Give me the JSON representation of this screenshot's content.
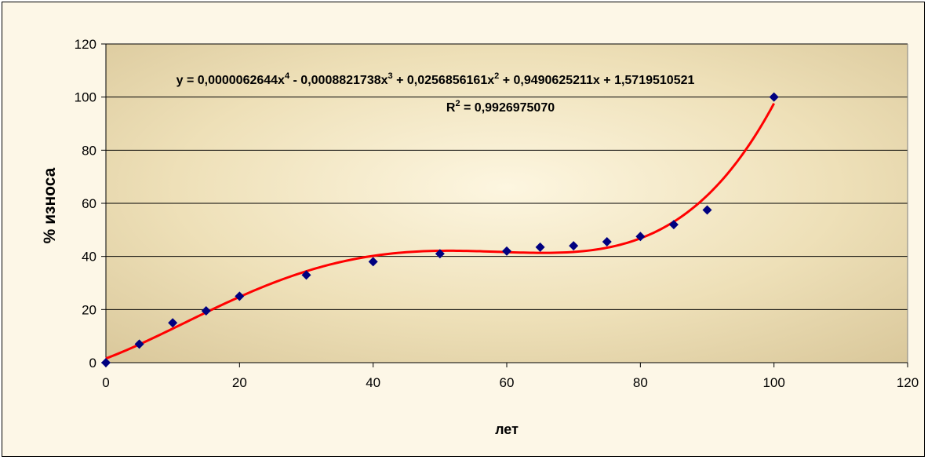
{
  "chart_data": {
    "type": "scatter",
    "xlabel": "лет",
    "ylabel": "% износа",
    "xlim": [
      0,
      120
    ],
    "ylim": [
      0,
      120
    ],
    "xticks": [
      "0",
      "20",
      "40",
      "60",
      "80",
      "100",
      "120"
    ],
    "yticks": [
      "0",
      "20",
      "40",
      "60",
      "80",
      "100",
      "120"
    ],
    "grid": "horizontal",
    "series": [
      {
        "x": [
          0,
          5,
          10,
          15,
          20,
          30,
          40,
          50,
          60,
          65,
          70,
          75,
          80,
          85,
          90,
          100
        ],
        "y": [
          0,
          7,
          15,
          19.5,
          25,
          33,
          38,
          41,
          42,
          43.5,
          44,
          45.5,
          47.5,
          52,
          57.5,
          100
        ],
        "color": "#000080",
        "marker": "diamond"
      }
    ],
    "trendline": {
      "type": "polynomial",
      "order": 4,
      "coefficients": [
        6.2644e-06,
        -0.0008821738,
        0.0256856161,
        0.9490625211,
        1.5719510521
      ],
      "color": "#ff0000",
      "x_range": [
        0,
        100
      ],
      "equation": {
        "prefix": "y = 0,0000062644x",
        "p4": "4",
        "mid1": " - 0,0008821738x",
        "p3": "3",
        "mid2": " + 0,0256856161x",
        "p2": "2",
        "suffix": " + 0,9490625211x + 1,5719510521"
      },
      "r2": {
        "label": "R",
        "sup": "2",
        "value": " = 0,9926975070"
      }
    }
  }
}
